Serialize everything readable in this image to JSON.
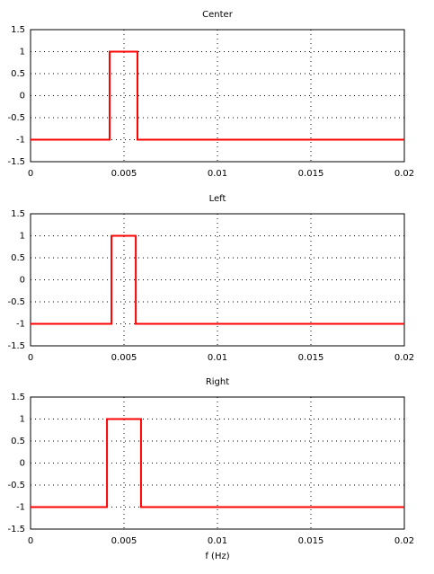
{
  "chart_data": [
    {
      "type": "line",
      "title": "Center",
      "series": [
        {
          "color": "#ff0000",
          "x": [
            0,
            0.00423,
            0.00423,
            0.00572,
            0.00572,
            0.02
          ],
          "values": [
            -1,
            -1,
            1,
            1,
            -1,
            -1
          ]
        }
      ],
      "xlim": [
        0,
        0.02
      ],
      "xticks": [
        0,
        0.005,
        0.01,
        0.015,
        0.02
      ],
      "ylim": [
        -1.5,
        1.5
      ],
      "yticks": [
        -1.5,
        -1,
        -0.5,
        0,
        0.5,
        1,
        1.5
      ],
      "grid": true
    },
    {
      "type": "line",
      "title": "Left",
      "series": [
        {
          "color": "#ff0000",
          "x": [
            0,
            0.00433,
            0.00433,
            0.00563,
            0.00563,
            0.02
          ],
          "values": [
            -1,
            -1,
            1,
            1,
            -1,
            -1
          ]
        }
      ],
      "xlim": [
        0,
        0.02
      ],
      "xticks": [
        0,
        0.005,
        0.01,
        0.015,
        0.02
      ],
      "ylim": [
        -1.5,
        1.5
      ],
      "yticks": [
        -1.5,
        -1,
        -0.5,
        0,
        0.5,
        1,
        1.5
      ],
      "grid": true
    },
    {
      "type": "line",
      "title": "Right",
      "xlabel": "f (Hz)",
      "series": [
        {
          "color": "#ff0000",
          "x": [
            0,
            0.00409,
            0.00409,
            0.00591,
            0.00591,
            0.02
          ],
          "values": [
            -1,
            -1,
            1,
            1,
            -1,
            -1
          ]
        }
      ],
      "xlim": [
        0,
        0.02
      ],
      "xticks": [
        0,
        0.005,
        0.01,
        0.015,
        0.02
      ],
      "ylim": [
        -1.5,
        1.5
      ],
      "yticks": [
        -1.5,
        -1,
        -0.5,
        0,
        0.5,
        1,
        1.5
      ],
      "grid": true
    }
  ]
}
